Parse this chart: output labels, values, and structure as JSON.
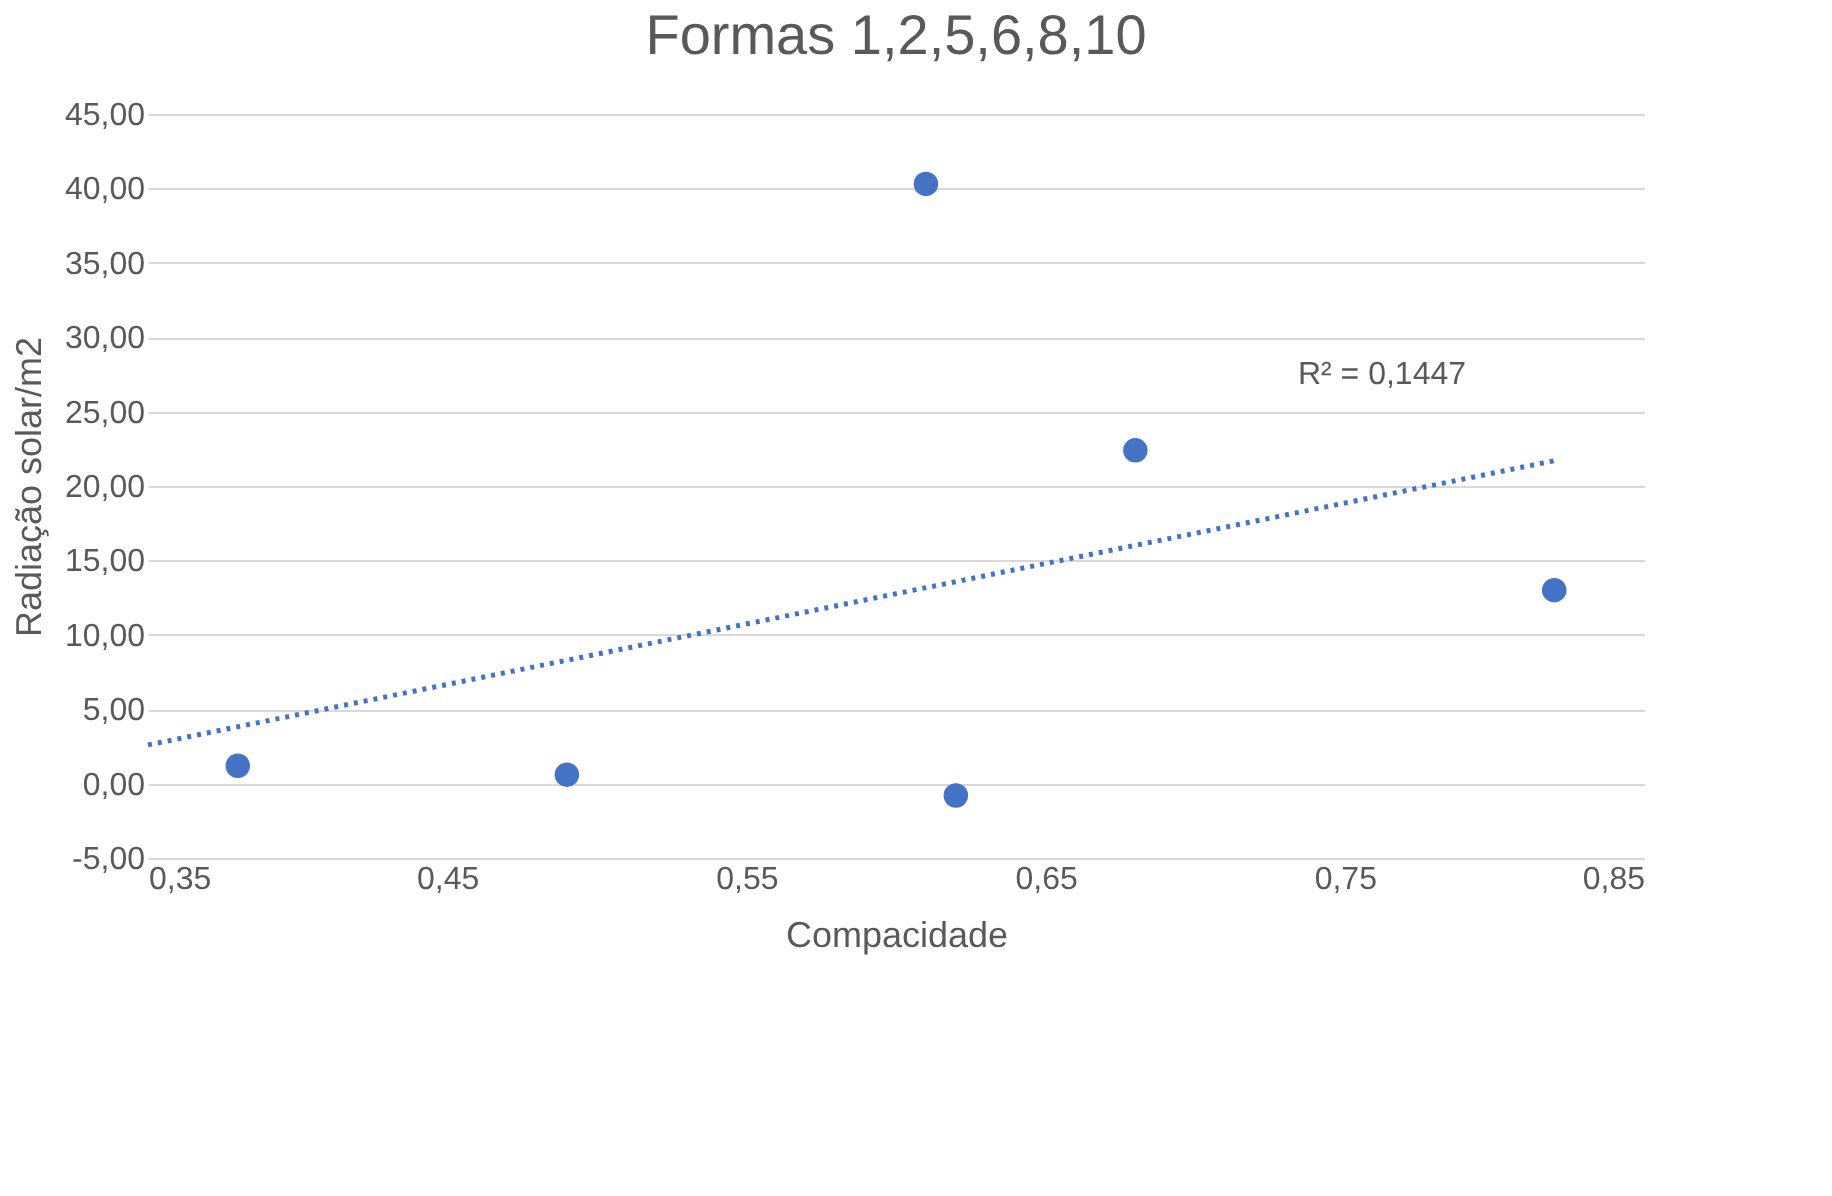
{
  "chart_data": {
    "type": "scatter",
    "title": "Formas 1,2,5,6,8,10",
    "xlabel": "Compacidade",
    "ylabel": "Radiação solar/m2",
    "xlim": [
      0.35,
      0.85
    ],
    "xticks": [
      {
        "value": 0.35,
        "label": "0,35"
      },
      {
        "value": 0.45,
        "label": "0,45"
      },
      {
        "value": 0.55,
        "label": "0,55"
      },
      {
        "value": 0.65,
        "label": "0,65"
      },
      {
        "value": 0.75,
        "label": "0,75"
      },
      {
        "value": 0.85,
        "label": "0,85"
      }
    ],
    "ylim": [
      -5,
      45
    ],
    "yticks": [
      {
        "value": -5,
        "label": "-5,00"
      },
      {
        "value": 0,
        "label": "0,00"
      },
      {
        "value": 5,
        "label": "5,00"
      },
      {
        "value": 10,
        "label": "10,00"
      },
      {
        "value": 15,
        "label": "15,00"
      },
      {
        "value": 20,
        "label": "20,00"
      },
      {
        "value": 25,
        "label": "25,00"
      },
      {
        "value": 30,
        "label": "30,00"
      },
      {
        "value": 35,
        "label": "35,00"
      },
      {
        "value": 40,
        "label": "40,00"
      },
      {
        "value": 45,
        "label": "45,00"
      }
    ],
    "grid": "y",
    "series": [
      {
        "color": "#4472c4",
        "marker": "circle",
        "x": [
          0.38,
          0.49,
          0.61,
          0.62,
          0.68,
          0.82
        ],
        "values": [
          1.2,
          0.6,
          40.3,
          -0.8,
          22.4,
          13.0
        ]
      },
      {
        "type": "line",
        "color": "#4472c4",
        "line_style": "dotted",
        "x": [
          0.35,
          0.82
        ],
        "values": [
          2.6,
          21.7
        ]
      }
    ],
    "annotations": [
      "R² = 0,1447"
    ]
  }
}
